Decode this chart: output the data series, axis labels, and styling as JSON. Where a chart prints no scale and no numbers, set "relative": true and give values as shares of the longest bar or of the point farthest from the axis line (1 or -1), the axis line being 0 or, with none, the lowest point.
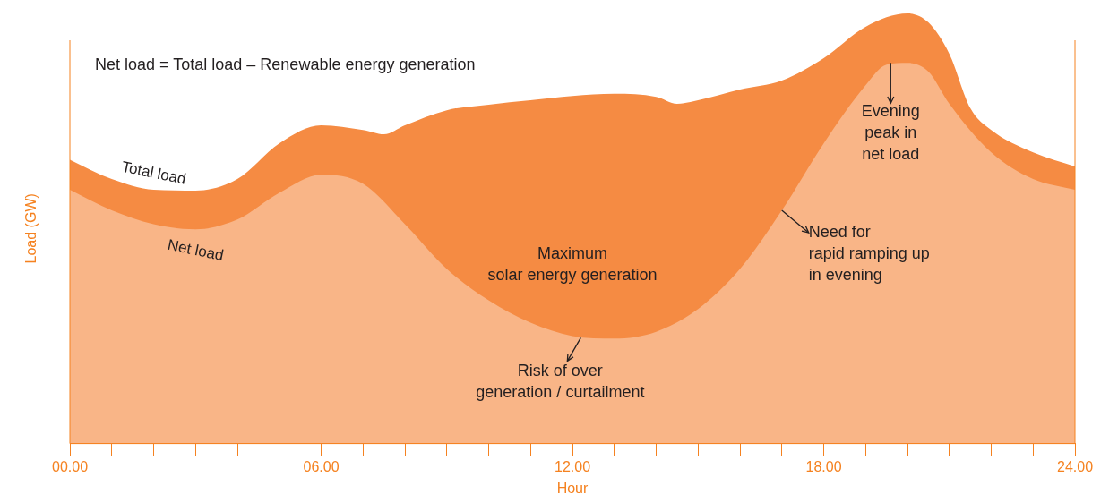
{
  "chart_data": {
    "type": "area",
    "relative": true,
    "xlabel": "Hour",
    "ylabel": "Load (GW)",
    "xlim": [
      0,
      24
    ],
    "xticks": [
      {
        "value": 0,
        "label": "00.00"
      },
      {
        "value": 1,
        "label": null
      },
      {
        "value": 2,
        "label": null
      },
      {
        "value": 3,
        "label": null
      },
      {
        "value": 4,
        "label": null
      },
      {
        "value": 5,
        "label": null
      },
      {
        "value": 6,
        "label": "06.00"
      },
      {
        "value": 7,
        "label": null
      },
      {
        "value": 8,
        "label": null
      },
      {
        "value": 9,
        "label": null
      },
      {
        "value": 10,
        "label": null
      },
      {
        "value": 11,
        "label": null
      },
      {
        "value": 12,
        "label": "12.00"
      },
      {
        "value": 13,
        "label": null
      },
      {
        "value": 14,
        "label": null
      },
      {
        "value": 15,
        "label": null
      },
      {
        "value": 16,
        "label": null
      },
      {
        "value": 17,
        "label": null
      },
      {
        "value": 18,
        "label": "18.00"
      },
      {
        "value": 19,
        "label": null
      },
      {
        "value": 20,
        "label": null
      },
      {
        "value": 21,
        "label": null
      },
      {
        "value": 22,
        "label": null
      },
      {
        "value": 23,
        "label": null
      },
      {
        "value": 24,
        "label": "24.00"
      }
    ],
    "series": [
      {
        "name": "Total load",
        "color": "#f58b43",
        "x": [
          0,
          1,
          2,
          3,
          4,
          5,
          6,
          7,
          7.5,
          8,
          9,
          10,
          11,
          12,
          13,
          14,
          14.5,
          15,
          16,
          17,
          18,
          19,
          20,
          20.5,
          21,
          21.5,
          22,
          23,
          24
        ],
        "values": [
          0.66,
          0.615,
          0.59,
          0.588,
          0.615,
          0.698,
          0.74,
          0.729,
          0.719,
          0.74,
          0.775,
          0.788,
          0.798,
          0.808,
          0.813,
          0.806,
          0.79,
          0.798,
          0.823,
          0.844,
          0.896,
          0.969,
          1,
          0.979,
          0.906,
          0.78,
          0.729,
          0.677,
          0.644
        ]
      },
      {
        "name": "Net load",
        "color": "#f9b587",
        "x": [
          0,
          1,
          2,
          3,
          4,
          5,
          6,
          7,
          8,
          9,
          10,
          11,
          12,
          13,
          14,
          15,
          16,
          17,
          18,
          19,
          19.5,
          20,
          20.5,
          21,
          22,
          23,
          24
        ],
        "values": [
          0.59,
          0.542,
          0.51,
          0.498,
          0.521,
          0.583,
          0.625,
          0.604,
          0.51,
          0.406,
          0.333,
          0.281,
          0.25,
          0.244,
          0.26,
          0.313,
          0.406,
          0.542,
          0.698,
          0.833,
          0.881,
          0.885,
          0.865,
          0.79,
          0.677,
          0.615,
          0.59
        ]
      }
    ],
    "annotations": [
      "Net load = Total load – Renewable energy generation",
      "Maximum\nsolar energy generation",
      {
        "text": "Evening\npeak in\nnet load",
        "x": 19.6,
        "y": 0.885
      },
      {
        "text": "Need for\nrapid ramping up\nin evening",
        "x": 17,
        "y": 0.542
      },
      {
        "text": "Risk of over\ngeneration / curtailment",
        "x": 12.2,
        "y": 0.246
      }
    ]
  }
}
